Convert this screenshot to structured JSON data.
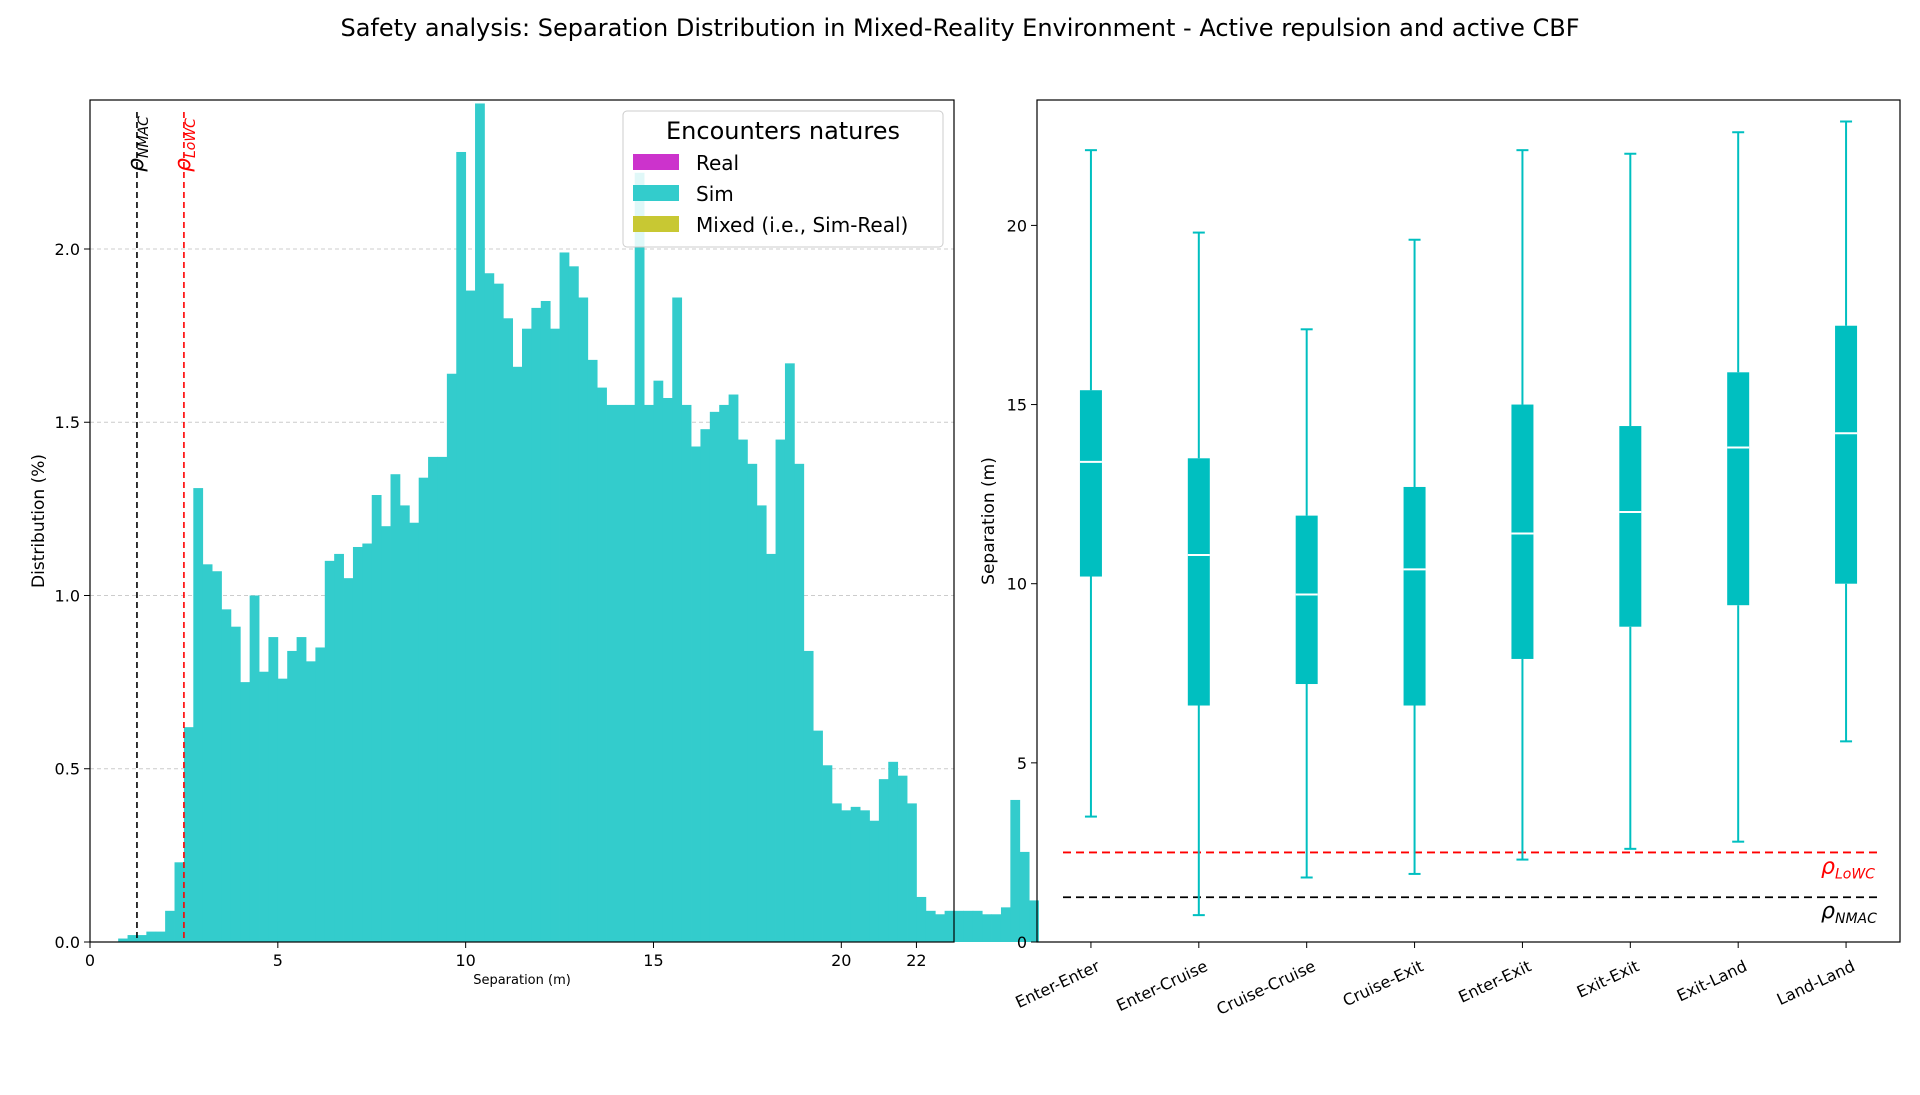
{
  "figure_title": "Safety analysis: Separation Distribution in Mixed-Reality Environment - Active repulsion and active CBF",
  "colors": {
    "real": "#cc33cc",
    "sim": "#33cccc",
    "mixed": "#c8c833",
    "box": "#00bfc0",
    "median": "#ffffff",
    "lowc_line": "#ff0000",
    "nmac_line": "#000000",
    "grid": "#cccccc"
  },
  "chart_data": [
    {
      "type": "bar",
      "subtype": "histogram",
      "xlabel": "Separation (m)",
      "ylabel": "Distribution (%)",
      "xlim": [
        0,
        23
      ],
      "ylim": [
        0,
        2.43
      ],
      "xticks": [
        0,
        5,
        10,
        15,
        20,
        22
      ],
      "yticks": [
        "0.0",
        "0.5",
        "1.0",
        "1.5",
        "2.0"
      ],
      "grid": "horizontal dashed",
      "bin_width": 0.25,
      "bin_start": 0.5,
      "series": [
        {
          "name": "Sim",
          "color": "#33cccc",
          "values": [
            0,
            0.01,
            0.02,
            0.02,
            0.03,
            0.03,
            0.09,
            0.23,
            0.62,
            1.31,
            1.09,
            1.07,
            0.96,
            0.91,
            0.75,
            1.0,
            0.78,
            0.88,
            0.76,
            0.84,
            0.88,
            0.81,
            0.85,
            1.1,
            1.12,
            1.05,
            1.14,
            1.15,
            1.29,
            1.2,
            1.35,
            1.26,
            1.21,
            1.34,
            1.4,
            1.4,
            1.64,
            2.28,
            1.88,
            2.42,
            1.93,
            1.9,
            1.8,
            1.66,
            1.77,
            1.83,
            1.85,
            1.77,
            1.99,
            1.95,
            1.86,
            1.68,
            1.6,
            1.55,
            1.55,
            1.55,
            2.22,
            1.55,
            1.62,
            1.57,
            1.86,
            1.55,
            1.43,
            1.48,
            1.53,
            1.55,
            1.58,
            1.45,
            1.38,
            1.26,
            1.12,
            1.45,
            1.67,
            1.38,
            0.84,
            0.61,
            0.51,
            0.4,
            0.38,
            0.39,
            0.38,
            0.35,
            0.47,
            0.52,
            0.48,
            0.4,
            0.13,
            0.09,
            0.08,
            0.09,
            0.09,
            0.09,
            0.09,
            0.08,
            0.08,
            0.1,
            0.41,
            0.26,
            0.12
          ]
        }
      ],
      "legend": {
        "title": "Encounters natures",
        "placement": "top-right",
        "entries": [
          {
            "label": "Real",
            "color": "#cc33cc"
          },
          {
            "label": "Sim",
            "color": "#33cccc"
          },
          {
            "label": "Mixed (i.e., Sim-Real)",
            "color": "#c8c833"
          }
        ]
      },
      "reference_lines": [
        {
          "name": "rho_NMAC",
          "x": 1.25,
          "color": "#000000",
          "label_main": "ρ",
          "label_sub": "NMAC"
        },
        {
          "name": "rho_LoWC",
          "x": 2.5,
          "color": "#ff0000",
          "label_main": "ρ",
          "label_sub": "LoWC"
        }
      ]
    },
    {
      "type": "box",
      "ylabel": "Separation (m)",
      "ylim": [
        0,
        23.5
      ],
      "yticks": [
        "0",
        "5",
        "10",
        "15",
        "20"
      ],
      "categories": [
        "Enter-Enter",
        "Enter-Cruise",
        "Cruise-Cruise",
        "Cruise-Exit",
        "Enter-Exit",
        "Exit-Exit",
        "Exit-Land",
        "Land-Land"
      ],
      "boxes": [
        {
          "min": 3.5,
          "q1": 10.2,
          "median": 13.4,
          "q3": 15.4,
          "max": 22.1
        },
        {
          "min": 0.75,
          "q1": 6.6,
          "median": 10.8,
          "q3": 13.5,
          "max": 19.8
        },
        {
          "min": 1.8,
          "q1": 7.2,
          "median": 9.7,
          "q3": 11.9,
          "max": 17.1
        },
        {
          "min": 1.9,
          "q1": 6.6,
          "median": 10.4,
          "q3": 12.7,
          "max": 19.6
        },
        {
          "min": 2.3,
          "q1": 7.9,
          "median": 11.4,
          "q3": 15.0,
          "max": 22.1
        },
        {
          "min": 2.6,
          "q1": 8.8,
          "median": 12.0,
          "q3": 14.4,
          "max": 22.0
        },
        {
          "min": 2.8,
          "q1": 9.4,
          "median": 13.8,
          "q3": 15.9,
          "max": 22.6
        },
        {
          "min": 5.6,
          "q1": 10.0,
          "median": 14.2,
          "q3": 17.2,
          "max": 22.9
        }
      ],
      "reference_lines": [
        {
          "name": "rho_LoWC",
          "y": 2.5,
          "color": "#ff0000",
          "label_main": "ρ",
          "label_sub": "LoWC"
        },
        {
          "name": "rho_NMAC",
          "y": 1.25,
          "color": "#000000",
          "label_main": "ρ",
          "label_sub": "NMAC"
        }
      ]
    }
  ]
}
